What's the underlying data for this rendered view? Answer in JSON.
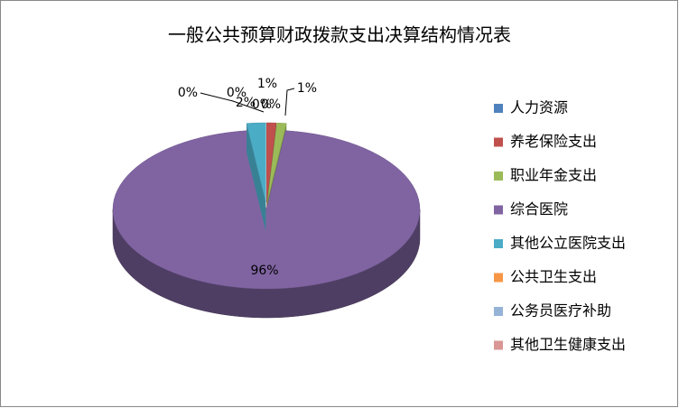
{
  "chart_data": {
    "type": "pie",
    "title": "一般公共预算财政拨款支出决算结构情况表",
    "categories": [
      "人力资源",
      "养老保险支出",
      "职业年金支出",
      "综合医院",
      "其他公立医院支出",
      "公共卫生支出",
      "公务员医疗补助",
      "其他卫生健康支出"
    ],
    "values": [
      0,
      1,
      1,
      96,
      2,
      0,
      0,
      0
    ],
    "value_labels": [
      "0%",
      "1%",
      "1%",
      "96%",
      "2%",
      "0%",
      "0%",
      "0%"
    ],
    "colors": [
      "#4f81bd",
      "#c0504d",
      "#9bbb59",
      "#8064a2",
      "#4bacc6",
      "#f79646",
      "#95b3d7",
      "#d99694"
    ],
    "legend": "right"
  }
}
